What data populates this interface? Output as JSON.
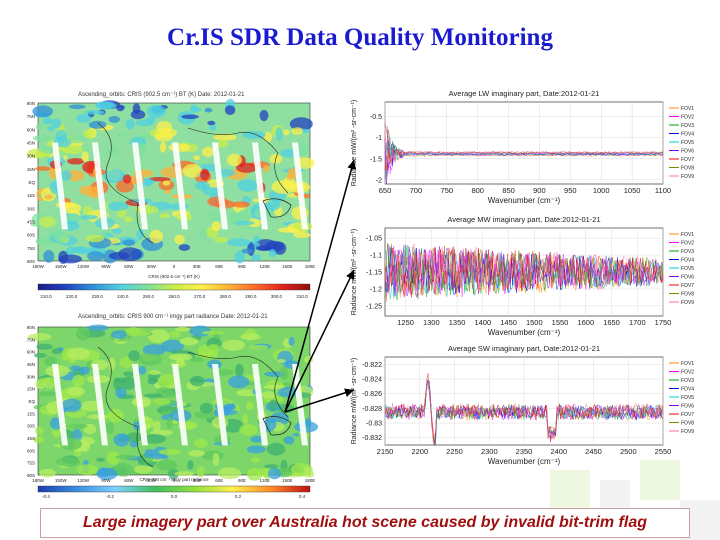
{
  "page": {
    "title": "Cr.IS SDR Data Quality Monitoring",
    "caption": "Large imagery part over Australia hot scene caused by invalid bit-trim flag"
  },
  "maps": [
    {
      "title": "Ascending_orbits: CRIS (902.5 cm⁻¹) BT (K)  Date: 2012-01-21",
      "lat_labels": [
        "90N",
        "75N",
        "60N",
        "45N",
        "30N",
        "15N",
        "EQ",
        "15S",
        "30S",
        "45S",
        "60S",
        "75S",
        "90S"
      ],
      "lon_labels": [
        "180W",
        "150W",
        "120W",
        "90W",
        "60W",
        "30W",
        "0",
        "30E",
        "60E",
        "90E",
        "120E",
        "150E",
        "180E"
      ],
      "colorbar_title": "CRIS (902.5 cm⁻¹) BT (K)",
      "colorbar_ticks": [
        "210.0",
        "220.0",
        "230.0",
        "240.0",
        "250.0",
        "260.0",
        "270.0",
        "280.0",
        "290.0",
        "300.0",
        "310.0"
      ]
    },
    {
      "title": "Ascending_orbits: CRIS 900 cm⁻¹ imgy part radiance  Date: 2012-01-21",
      "lat_labels": [
        "90N",
        "75N",
        "60N",
        "45N",
        "30N",
        "15N",
        "EQ",
        "15S",
        "30S",
        "45S",
        "60S",
        "75S",
        "90S"
      ],
      "lon_labels": [
        "180W",
        "150W",
        "120W",
        "90W",
        "60W",
        "30W",
        "0",
        "30E",
        "60E",
        "90E",
        "120E",
        "150E",
        "180E"
      ],
      "colorbar_title": "CRIS 900 cm⁻¹ imgy part radiance",
      "colorbar_ticks": [
        "-0.4",
        "-0.2",
        "0.0",
        "0.2",
        "0.4"
      ]
    }
  ],
  "chart_data": [
    {
      "type": "line",
      "title": "Average LW imaginary part, Date:2012-01-21",
      "xlabel": "Wavenumber (cm⁻¹)",
      "ylabel": "Radiance mW/(m² -sr-cm⁻¹)",
      "xlim": [
        650,
        1100
      ],
      "ylim": [
        -2.1,
        -0.15
      ],
      "xticks": [
        "650",
        "700",
        "750",
        "800",
        "850",
        "900",
        "950",
        "1000",
        "1050",
        "1100"
      ],
      "yticks": [
        -0.5,
        -1,
        -1.5,
        -2
      ],
      "yticklabels": [
        "-0.5",
        "-1",
        "-1.5",
        "-2"
      ],
      "legend": [
        "FOV1",
        "FOV2",
        "FOV3",
        "FOV4",
        "FOV5",
        "FOV6",
        "FOV7",
        "FOV8",
        "FOV9"
      ],
      "legend_position": "right",
      "series_note": "FOV curves near -1.4 with large oscillation at low wavenumber",
      "baseline": -1.38,
      "features": [
        {
          "x": 652,
          "y": -0.2
        },
        {
          "x": 655,
          "y": -2.05
        },
        {
          "x": 660,
          "y": -0.7
        },
        {
          "x": 668,
          "y": -1.9
        }
      ]
    },
    {
      "type": "line",
      "title": "Average MW imaginary part, Date:2012-01-21",
      "xlabel": "Wavenumber (cm⁻¹)",
      "ylabel": "Radiance mW/(m² -sr-cm⁻¹)",
      "xlim": [
        1210,
        1750
      ],
      "ylim": [
        -1.28,
        -1.02
      ],
      "xticks": [
        "1250",
        "1300",
        "1350",
        "1400",
        "1450",
        "1500",
        "1550",
        "1600",
        "1650",
        "1700",
        "1750"
      ],
      "yticks": [
        -1.05,
        -1.1,
        -1.15,
        -1.2,
        -1.25
      ],
      "yticklabels": [
        "-1.05",
        "-1.1",
        "-1.15",
        "-1.2",
        "-1.25"
      ],
      "legend": [
        "FOV1",
        "FOV2",
        "FOV3",
        "FOV4",
        "FOV5",
        "FOV6",
        "FOV7",
        "FOV8",
        "FOV9"
      ],
      "legend_position": "right",
      "series_note": "noisy band, envelope narrowing toward high wavenumber",
      "baseline": -1.15
    },
    {
      "type": "line",
      "title": "Average SW imaginary part, Date:2012-01-21",
      "xlabel": "Wavenumber (cm⁻¹)",
      "ylabel": "Radiance mW/(m² -sr-cm⁻¹)",
      "xlim": [
        2150,
        2550
      ],
      "ylim": [
        -0.833,
        -0.821
      ],
      "xticks": [
        "2150",
        "2200",
        "2250",
        "2300",
        "2350",
        "2400",
        "2450",
        "2500",
        "2550"
      ],
      "yticks": [
        -0.822,
        -0.824,
        -0.826,
        -0.828,
        -0.83,
        -0.832
      ],
      "yticklabels": [
        "-0.822",
        "-0.824",
        "-0.826",
        "-0.828",
        "-0.83",
        "-0.832"
      ],
      "legend": [
        "FOV1",
        "FOV2",
        "FOV3",
        "FOV4",
        "FOV5",
        "FOV6",
        "FOV7",
        "FOV8",
        "FOV9"
      ],
      "legend_position": "right",
      "baseline": -0.8285,
      "features": [
        {
          "x": 2215,
          "y": -0.8225
        },
        {
          "x": 2230,
          "y": -0.8315
        },
        {
          "x": 2390,
          "y": -0.832
        }
      ]
    }
  ],
  "colors": {
    "title": "#1a1ad0",
    "caption": "#a01010",
    "fov": [
      "#ff8c00",
      "#ff00ff",
      "#00a000",
      "#0000ff",
      "#00d0d0",
      "#8b00ff",
      "#ff0000",
      "#808000",
      "#ff69b4"
    ]
  }
}
